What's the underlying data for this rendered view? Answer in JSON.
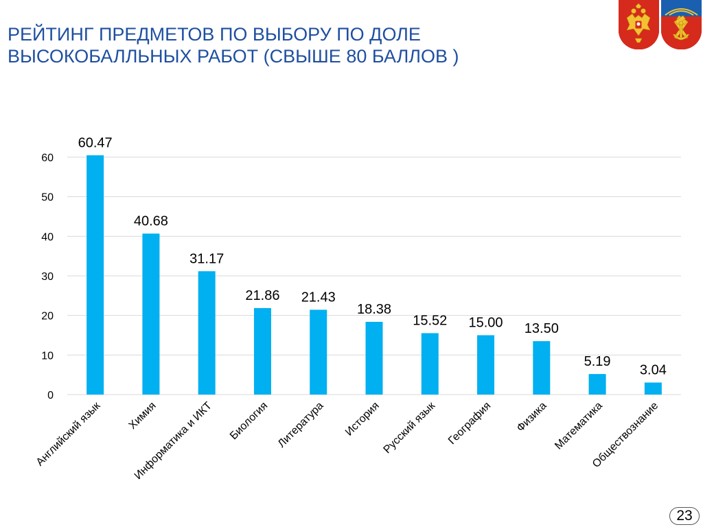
{
  "title": {
    "line1": "РЕЙТИНГ ПРЕДМЕТОВ ПО ВЫБОРУ ПО ДОЛЕ",
    "line2": "ВЫСОКОБАЛЛЬНЫХ РАБОТ (СВЫШЕ 80 БАЛЛОВ )"
  },
  "emblems": {
    "left": "coat-of-arms-russia-icon",
    "right": "coat-of-arms-murmansk-icon"
  },
  "page_number": "23",
  "colors": {
    "title": "#1f4fa0",
    "bar": "#00b0f0",
    "grid": "#d9d9d9",
    "emblem_red": "#d62a1c",
    "emblem_blue": "#1b5fb0"
  },
  "chart_data": {
    "type": "bar",
    "categories": [
      "Английский язык",
      "Химия",
      "Информатика и ИКТ",
      "Биология",
      "Литература",
      "История",
      "Русский язык",
      "География",
      "Физика",
      "Математика",
      "Обществознание"
    ],
    "values": [
      60.47,
      40.68,
      31.17,
      21.86,
      21.43,
      18.38,
      15.52,
      15.0,
      13.5,
      5.19,
      3.04
    ],
    "value_labels": [
      "60.47",
      "40.68",
      "31.17",
      "21.86",
      "21.43",
      "18.38",
      "15.52",
      "15.00",
      "13.50",
      "5.19",
      "3.04"
    ],
    "yticks": [
      "0",
      "10",
      "20",
      "30",
      "40",
      "50",
      "60"
    ],
    "ytick_values": [
      0,
      10,
      20,
      30,
      40,
      50,
      60
    ],
    "ylim": [
      0,
      60
    ],
    "grid": true,
    "legend": "none",
    "title": "",
    "xlabel": "",
    "ylabel": ""
  }
}
